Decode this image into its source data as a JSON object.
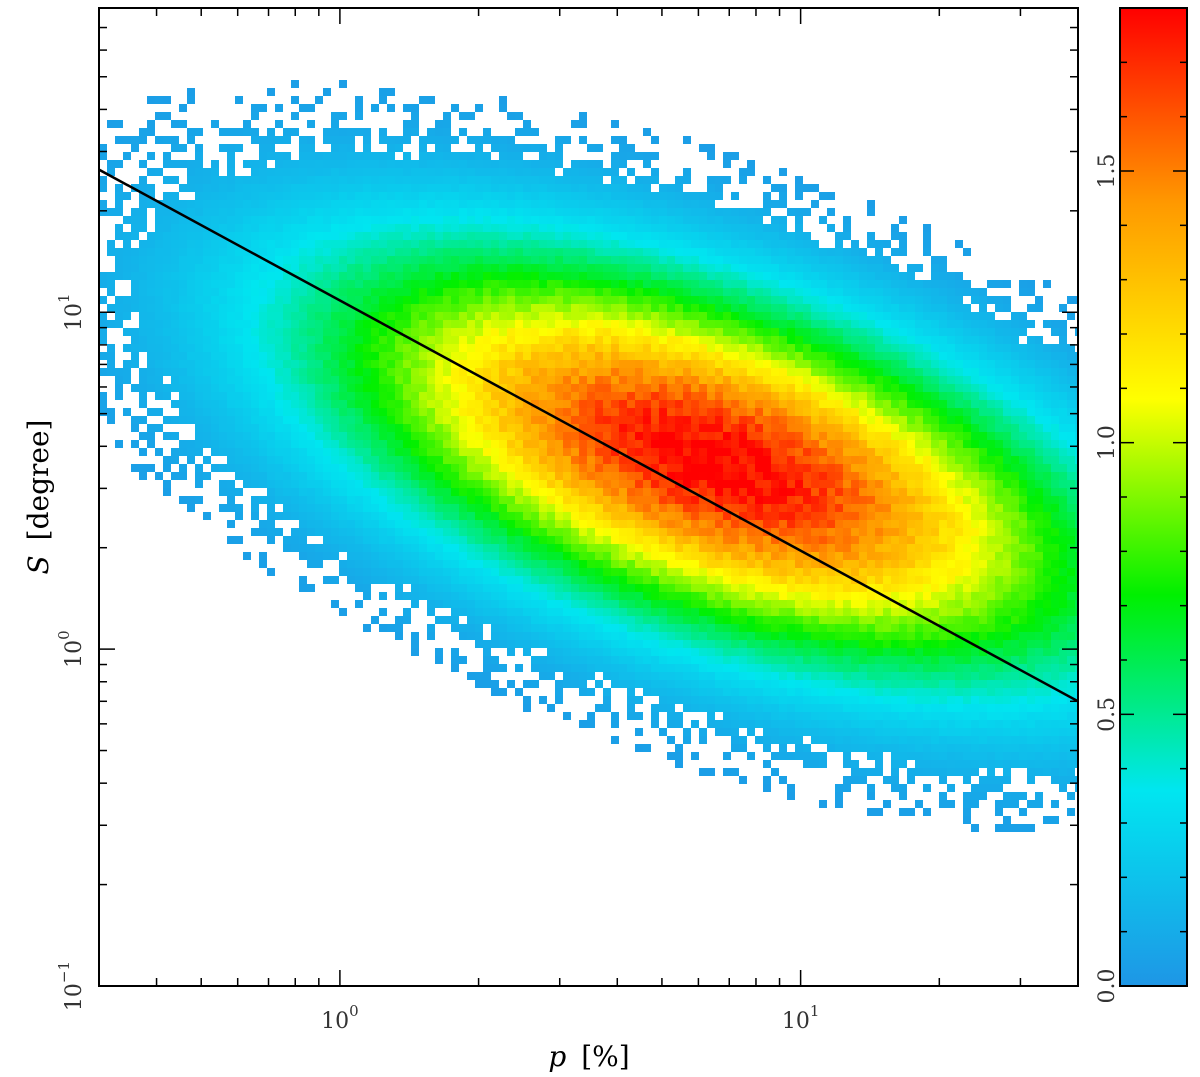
{
  "chart_data": {
    "type": "heatmap",
    "title": "",
    "xlabel": {
      "symbol": "p",
      "unit": "[%]"
    },
    "ylabel": {
      "symbol": "S",
      "unit": "[degree]"
    },
    "x_scale": "log",
    "y_scale": "log",
    "xlim": [
      0.3,
      40
    ],
    "ylim": [
      0.1,
      80
    ],
    "x_ticks": [
      {
        "value": 1,
        "base": "10",
        "exp": "0"
      },
      {
        "value": 10,
        "base": "10",
        "exp": "1"
      }
    ],
    "y_ticks": [
      {
        "value": 0.1,
        "base": "10",
        "exp": "−1"
      },
      {
        "value": 1,
        "base": "10",
        "exp": "0"
      },
      {
        "value": 10,
        "base": "10",
        "exp": "1"
      }
    ],
    "density": {
      "peak": {
        "p": 6.5,
        "S": 3.6
      },
      "max_value": 1.8,
      "description_shape": "elongated cloud from upper-left (p≈0.4, S≈30) to lower-right (p≈30, S≈1)"
    },
    "fit_line": {
      "points": [
        {
          "p": 0.3,
          "S": 26.5
        },
        {
          "p": 40,
          "S": 0.7
        }
      ],
      "color": "#000000"
    },
    "colorbar": {
      "range": [
        0.0,
        1.8
      ],
      "ticks": [
        {
          "value": 0.0,
          "label": "0.0"
        },
        {
          "value": 0.5,
          "label": "0.5"
        },
        {
          "value": 1.0,
          "label": "1.0"
        },
        {
          "value": 1.5,
          "label": "1.5"
        }
      ],
      "colormap": [
        "#1e96e6",
        "#00e6f0",
        "#00f000",
        "#ffff00",
        "#ff9900",
        "#ff0000"
      ]
    },
    "grid": false,
    "legend": "none"
  }
}
